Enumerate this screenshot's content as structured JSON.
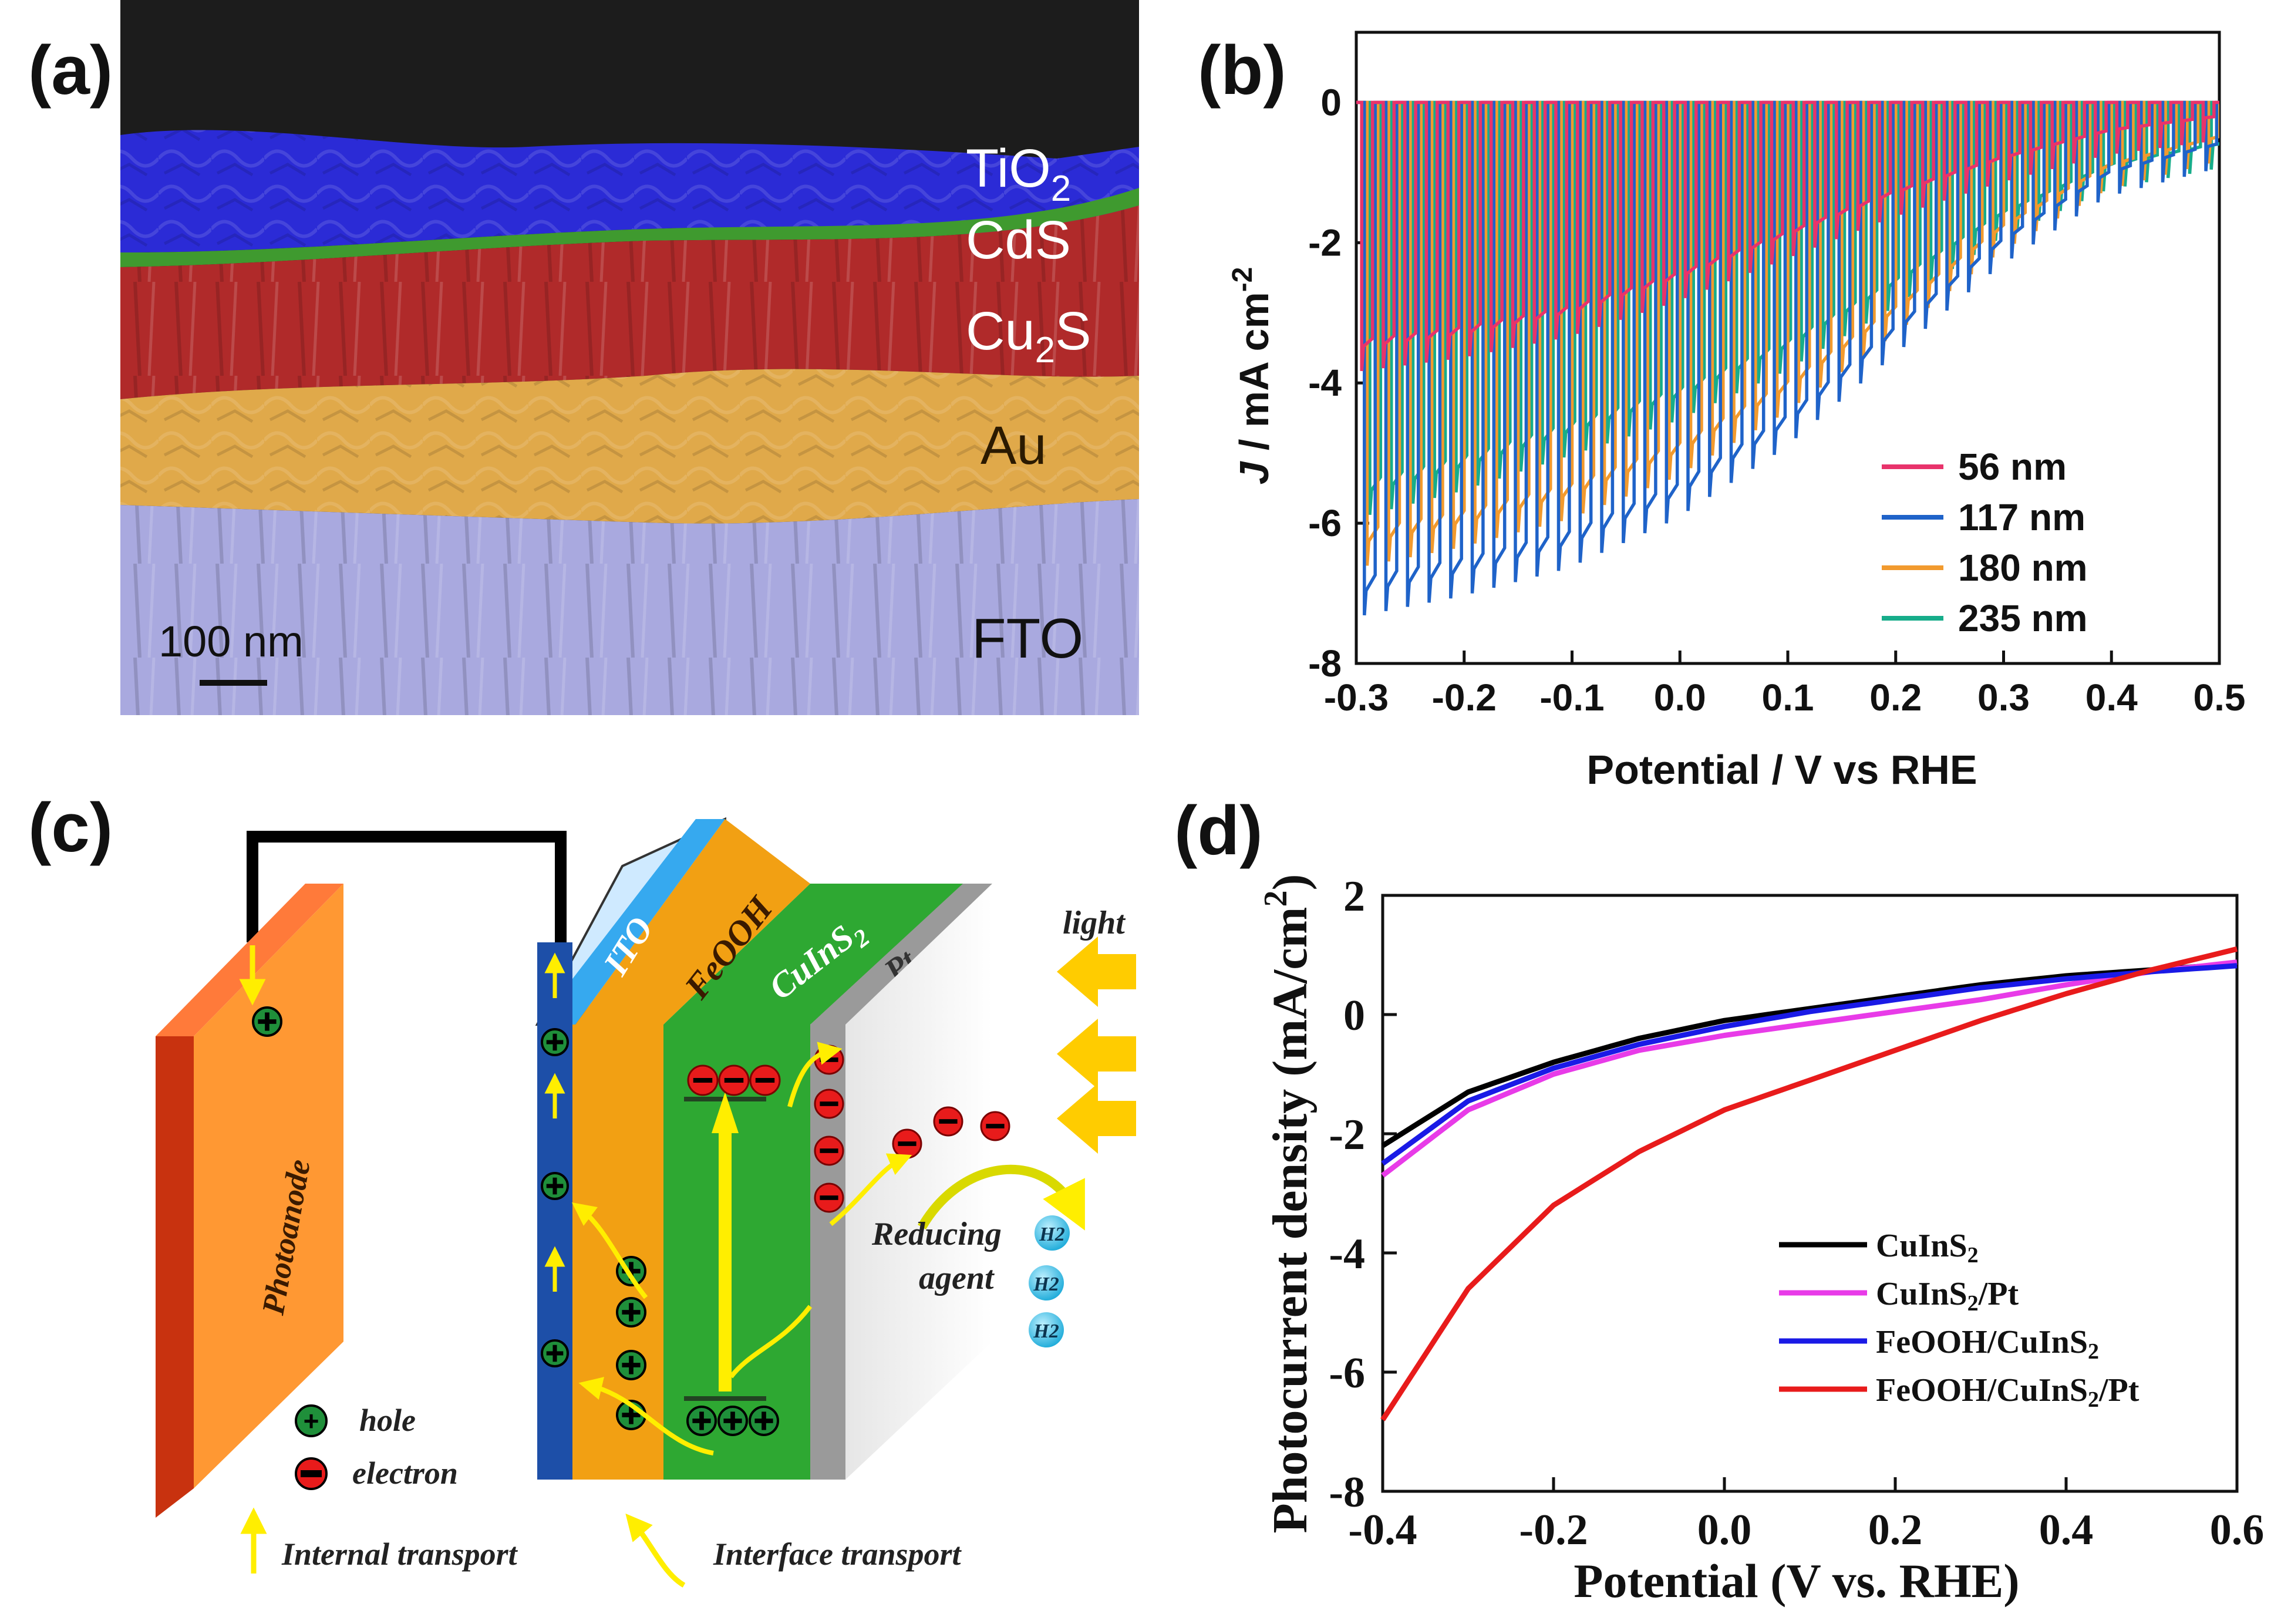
{
  "panels": {
    "a": {
      "tag": "(a)",
      "layers": [
        "TiO2",
        "CdS",
        "Cu2S",
        "Au",
        "FTO"
      ],
      "layer_display": {
        "tio2_main": "TiO",
        "tio2_sub": "2",
        "cds": "CdS",
        "cu2s_a": "Cu",
        "cu2s_sub": "2",
        "cu2s_b": "S",
        "au": "Au",
        "fto": "FTO"
      },
      "scale_bar": "100 nm",
      "colors": {
        "tio2": "#2b2bd6",
        "cds": "#3f9a2f",
        "cu2s": "#b02a2a",
        "au": "#e0a94a",
        "fto": "#a9a9df",
        "vacuum": "#1c1c1c"
      }
    },
    "b": {
      "tag": "(b)"
    },
    "c": {
      "tag": "(c)",
      "labels": {
        "ito": "ITO",
        "feooh": "FeOOH",
        "cuins2_a": "CuInS",
        "cuins2_sub": "2",
        "pt": "Pt",
        "light": "light",
        "photoanode": "Photoanode",
        "reducing": "Reducing",
        "agent": "agent",
        "h2": "H2",
        "hole": "hole",
        "electron": "electron",
        "internal": "Internal transport",
        "interface": "Interface transport"
      }
    },
    "d": {
      "tag": "(d)"
    }
  },
  "chart_data": [
    {
      "id": "b",
      "type": "line",
      "title": "",
      "xlabel": "Potential / V vs RHE",
      "ylabel": "J / mA cm-2",
      "ylabel_parts": {
        "j": "J",
        "rest": " / mA cm",
        "sup": "-2"
      },
      "xlim": [
        -0.3,
        0.5
      ],
      "ylim": [
        -8,
        1
      ],
      "xticks": [
        -0.3,
        -0.2,
        -0.1,
        0.0,
        0.1,
        0.2,
        0.3,
        0.4,
        0.5
      ],
      "xtick_labels": [
        "-0.3",
        "-0.2",
        "-0.1",
        "0.0",
        "0.1",
        "0.2",
        "0.3",
        "0.4",
        "0.5"
      ],
      "yticks": [
        0,
        -2,
        -4,
        -6,
        -8
      ],
      "ytick_labels": [
        "0",
        "-2",
        "-4",
        "-6",
        "-8"
      ],
      "legend_position": "bottom-right",
      "chopped": true,
      "chop_period_v": 0.02,
      "series": [
        {
          "name": "56 nm",
          "color": "#e8336b",
          "dark_current": 0.0,
          "light_x": [
            -0.3,
            -0.2,
            -0.1,
            0.0,
            0.1,
            0.2,
            0.3,
            0.4,
            0.5
          ],
          "light_y": [
            -3.5,
            -3.3,
            -3.0,
            -2.5,
            -1.9,
            -1.3,
            -0.8,
            -0.4,
            -0.2
          ]
        },
        {
          "name": "117 nm",
          "color": "#1f63c9",
          "dark_current": 0.0,
          "light_x": [
            -0.3,
            -0.2,
            -0.1,
            0.0,
            0.1,
            0.2,
            0.3,
            0.4,
            0.5
          ],
          "light_y": [
            -7.0,
            -6.7,
            -6.3,
            -5.6,
            -4.6,
            -3.3,
            -2.0,
            -1.0,
            -0.6
          ]
        },
        {
          "name": "180 nm",
          "color": "#f29a2e",
          "dark_current": 0.0,
          "light_x": [
            -0.3,
            -0.2,
            -0.1,
            0.0,
            0.1,
            0.2,
            0.3,
            0.4,
            0.5
          ],
          "light_y": [
            -6.3,
            -6.0,
            -5.6,
            -5.0,
            -4.1,
            -3.0,
            -1.8,
            -0.9,
            -0.5
          ]
        },
        {
          "name": "235 nm",
          "color": "#17ad8a",
          "dark_current": 0.0,
          "light_x": [
            -0.3,
            -0.2,
            -0.1,
            0.0,
            0.1,
            0.2,
            0.3,
            0.4,
            0.5
          ],
          "light_y": [
            -5.6,
            -5.2,
            -4.7,
            -4.2,
            -3.5,
            -2.6,
            -1.6,
            -0.9,
            -0.6
          ]
        }
      ]
    },
    {
      "id": "d",
      "type": "line",
      "title": "",
      "xlabel": "Potential (V vs. RHE)",
      "ylabel": "Photocurrent density (mA/cm2)",
      "ylabel_parts": {
        "main": "Photocurrent density ",
        "unit": "(mA/cm",
        "sup": "2",
        "close": ")"
      },
      "xlim": [
        -0.4,
        0.6
      ],
      "ylim": [
        -8,
        2
      ],
      "xticks": [
        -0.4,
        -0.2,
        0.0,
        0.2,
        0.4,
        0.6
      ],
      "xtick_labels": [
        "-0.4",
        "-0.2",
        "0.0",
        "0.2",
        "0.4",
        "0.6"
      ],
      "yticks": [
        2,
        0,
        -2,
        -4,
        -6,
        -8
      ],
      "ytick_labels": [
        "2",
        "0",
        "-2",
        "-4",
        "-6",
        "-8"
      ],
      "legend_position": "bottom-right",
      "series": [
        {
          "name": "CuInS2",
          "label_main": "CuInS",
          "label_sub": "2",
          "label_tail": "",
          "color": "#000000",
          "x": [
            -0.4,
            -0.3,
            -0.2,
            -0.1,
            0.0,
            0.1,
            0.2,
            0.3,
            0.4,
            0.5,
            0.6
          ],
          "y": [
            -2.2,
            -1.3,
            -0.8,
            -0.4,
            -0.1,
            0.1,
            0.3,
            0.5,
            0.65,
            0.75,
            0.85
          ]
        },
        {
          "name": "CuInS2/Pt",
          "label_main": "CuInS",
          "label_sub": "2",
          "label_tail": "/Pt",
          "color": "#e83be8",
          "x": [
            -0.4,
            -0.3,
            -0.2,
            -0.1,
            0.0,
            0.1,
            0.2,
            0.3,
            0.4,
            0.5,
            0.6
          ],
          "y": [
            -2.7,
            -1.6,
            -1.0,
            -0.6,
            -0.35,
            -0.15,
            0.05,
            0.25,
            0.5,
            0.72,
            0.88
          ]
        },
        {
          "name": "FeOOH/CuInS2",
          "label_main": "FeOOH/CuInS",
          "label_sub": "2",
          "label_tail": "",
          "color": "#1a1ae6",
          "x": [
            -0.4,
            -0.3,
            -0.2,
            -0.1,
            0.0,
            0.1,
            0.2,
            0.3,
            0.4,
            0.5,
            0.6
          ],
          "y": [
            -2.5,
            -1.45,
            -0.9,
            -0.5,
            -0.2,
            0.05,
            0.25,
            0.45,
            0.6,
            0.72,
            0.82
          ]
        },
        {
          "name": "FeOOH/CuInS2/Pt",
          "label_main": "FeOOH/CuInS",
          "label_sub": "2",
          "label_tail": "/Pt",
          "color": "#e81b1b",
          "x": [
            -0.4,
            -0.3,
            -0.2,
            -0.1,
            0.0,
            0.1,
            0.2,
            0.3,
            0.4,
            0.5,
            0.6
          ],
          "y": [
            -6.8,
            -4.6,
            -3.2,
            -2.3,
            -1.6,
            -1.1,
            -0.6,
            -0.1,
            0.35,
            0.75,
            1.1
          ]
        }
      ]
    }
  ]
}
